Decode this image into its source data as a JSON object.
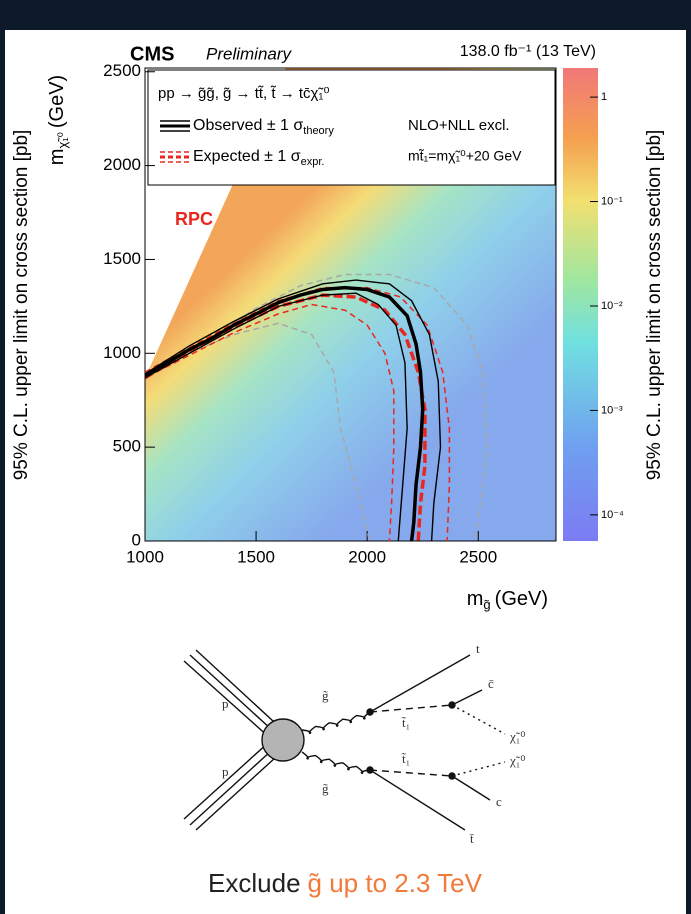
{
  "chart_data": {
    "type": "contour",
    "title": "CMS",
    "subtitle": "Preliminary",
    "lumi": "138.0 fb⁻¹ (13 TeV)",
    "xlabel": {
      "text": "m",
      "sub": "g̃",
      "unit": "(GeV)"
    },
    "ylabel": {
      "text": "m",
      "sub": "χ̃₁⁰",
      "unit": "(GeV)"
    },
    "zlabel": "95% C.L. upper limit on cross section [pb]",
    "process": "pp → g̃g̃, g̃ → tt̃, t̃ → tc̄χ̃₁⁰",
    "method": "NLO+NLL excl.",
    "mass_relation": "mt̃₁=mχ̃₁⁰+20 GeV",
    "region": "RPC",
    "xlim": [
      1000,
      2850
    ],
    "xticks": [
      1000,
      1500,
      2000,
      2500
    ],
    "ylim": [
      0,
      2520
    ],
    "yticks": [
      0,
      500,
      1000,
      1500,
      2000,
      2500
    ],
    "zlog": true,
    "zlim": [
      5.62e-05,
      1.9
    ],
    "zticks": [
      {
        "value": 0.0001,
        "label": "10⁻⁴"
      },
      {
        "value": 0.001,
        "label": "10⁻³"
      },
      {
        "value": 0.01,
        "label": "10⁻²"
      },
      {
        "value": 0.1,
        "label": "10⁻¹"
      },
      1
    ],
    "series": [
      {
        "name": "Observed ± 1 σ",
        "name_sub": "theory",
        "color": "#000000",
        "width": 3.5,
        "dashed": false,
        "x": [
          1000,
          1100,
          1200,
          1300,
          1400,
          1500,
          1600,
          1700,
          1800,
          1900,
          2000,
          2100,
          2180,
          2220,
          2240,
          2250,
          2240,
          2220,
          2210,
          2200
        ],
        "y": [
          880,
          950,
          1020,
          1080,
          1150,
          1210,
          1270,
          1310,
          1340,
          1350,
          1340,
          1300,
          1200,
          1050,
          900,
          700,
          500,
          300,
          100,
          0
        ]
      },
      {
        "color": "#000000",
        "width": 1.4,
        "dashed": false,
        "x": [
          1000,
          1200,
          1400,
          1600,
          1800,
          1950,
          2100,
          2200,
          2280,
          2320,
          2330,
          2300,
          2290
        ],
        "y": [
          890,
          1040,
          1170,
          1290,
          1370,
          1390,
          1370,
          1280,
          1100,
          850,
          500,
          200,
          0
        ]
      },
      {
        "color": "#000000",
        "width": 1.4,
        "dashed": false,
        "x": [
          1000,
          1200,
          1400,
          1600,
          1800,
          1950,
          2050,
          2130,
          2170,
          2180,
          2160,
          2140
        ],
        "y": [
          870,
          1000,
          1130,
          1250,
          1310,
          1320,
          1260,
          1150,
          950,
          600,
          300,
          0
        ]
      },
      {
        "name": "Expected ± 1 σ",
        "name_sub": "expr.",
        "color": "#e8281e",
        "width": 3.5,
        "dashed": true,
        "x": [
          1000,
          1200,
          1400,
          1600,
          1800,
          1950,
          2080,
          2170,
          2230,
          2260,
          2260,
          2240,
          2230
        ],
        "y": [
          870,
          1010,
          1140,
          1250,
          1310,
          1300,
          1230,
          1100,
          900,
          700,
          400,
          200,
          0
        ]
      },
      {
        "color": "#e8281e",
        "width": 1.5,
        "dashed": true,
        "x": [
          1000,
          1200,
          1400,
          1600,
          1800,
          2000,
          2150,
          2270,
          2340,
          2370,
          2370,
          2360
        ],
        "y": [
          900,
          1030,
          1160,
          1280,
          1350,
          1350,
          1300,
          1150,
          900,
          600,
          300,
          0
        ]
      },
      {
        "color": "#e8281e",
        "width": 1.5,
        "dashed": true,
        "x": [
          1050,
          1200,
          1400,
          1600,
          1750,
          1900,
          2000,
          2080,
          2120,
          2120,
          2110,
          2100
        ],
        "y": [
          900,
          990,
          1110,
          1210,
          1260,
          1230,
          1150,
          1000,
          800,
          500,
          200,
          0
        ]
      },
      {
        "color": "#a8a8a8",
        "width": 1.5,
        "dashed": true,
        "x": [
          1300,
          1500,
          1700,
          1900,
          2100,
          2300,
          2450,
          2520,
          2540,
          2500,
          2480
        ],
        "y": [
          1080,
          1240,
          1360,
          1420,
          1420,
          1350,
          1150,
          900,
          500,
          100,
          0
        ]
      },
      {
        "color": "#a8a8a8",
        "width": 1.5,
        "dashed": true,
        "x": [
          1150,
          1400,
          1600,
          1750,
          1850,
          1880,
          1950,
          2010
        ],
        "y": [
          980,
          1100,
          1160,
          1100,
          900,
          600,
          300,
          0
        ]
      }
    ]
  },
  "side_label": "95% C.L. upper limit on cross section [pb]",
  "diagram": {
    "proton_top": "p",
    "proton_bottom": "p",
    "gluino_top": "g̃",
    "gluino_bottom": "g̃",
    "stop_top": "t̃₁",
    "stop_bottom": "t̃₁",
    "top": "t",
    "charm_bar": "c̄",
    "neutralino_top": "χ̃₁⁰",
    "neutralino_bottom": "χ̃₁⁰",
    "charm": "c",
    "top_bar": "t̄"
  },
  "caption": {
    "text": "Exclude",
    "highlight": "g̃ up to 2.3 TeV"
  }
}
